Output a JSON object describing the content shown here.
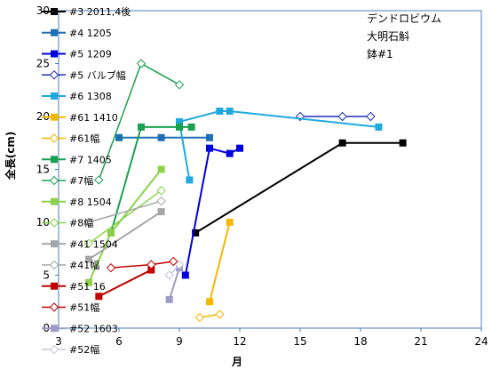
{
  "chart_data": {
    "type": "line",
    "xlabel": "月",
    "ylabel": "全長(cm)",
    "xlim": [
      3,
      24
    ],
    "ylim": [
      0,
      30
    ],
    "xticks": [
      "3",
      "6",
      "9",
      "12",
      "15",
      "18",
      "21",
      "24"
    ],
    "yticks": [
      "0",
      "5",
      "10",
      "15",
      "20",
      "25",
      "30"
    ],
    "annotation": [
      "デンドロビウム",
      "大明石斛",
      "鉢#1"
    ],
    "series": [
      {
        "name": "#3 2011,4後",
        "color": "#000000",
        "marker": "square",
        "x": [
          9.8,
          17.1,
          20.1
        ],
        "y": [
          9.0,
          17.5,
          17.5
        ]
      },
      {
        "name": "#4 1205",
        "color": "#1f6fb5",
        "marker": "square",
        "x": [
          6.0,
          8.1,
          10.5
        ],
        "y": [
          18.0,
          18.0,
          18.0
        ]
      },
      {
        "name": "#5 1209",
        "color": "#0000e0",
        "marker": "square",
        "x": [
          9.3,
          10.5,
          11.5,
          12.0
        ],
        "y": [
          5.0,
          17.0,
          16.5,
          17.0
        ]
      },
      {
        "name": "#5 バルブ幅",
        "color": "#1f2fb5",
        "marker": "diamond-open",
        "x": [
          15.0,
          17.1,
          18.5
        ],
        "y": [
          20.0,
          20.0,
          20.0
        ]
      },
      {
        "name": "#6 1308",
        "color": "#1eaadf",
        "marker": "square",
        "x": [
          9.5,
          9.0,
          11.0,
          11.5,
          18.9
        ],
        "y": [
          14.0,
          19.5,
          20.5,
          20.5,
          19.0
        ]
      },
      {
        "name": "#61 1410",
        "color": "#f5b800",
        "marker": "square",
        "x": [
          10.5,
          11.5
        ],
        "y": [
          2.5,
          10.0
        ]
      },
      {
        "name": "#61幅",
        "color": "#f5b800",
        "marker": "diamond-open",
        "x": [
          10.0,
          11.0
        ],
        "y": [
          1.0,
          1.3
        ]
      },
      {
        "name": "#7 1405",
        "color": "#1aa050",
        "marker": "square",
        "x": [
          5.6,
          7.1,
          9.0,
          9.6
        ],
        "y": [
          9.0,
          19.0,
          19.0,
          19.0
        ]
      },
      {
        "name": "#7幅",
        "color": "#1aa050",
        "marker": "diamond-open",
        "x": [
          5.0,
          7.1,
          9.0
        ],
        "y": [
          14.0,
          25.0,
          23.0
        ]
      },
      {
        "name": "#8 1504",
        "color": "#8cd14a",
        "marker": "square",
        "x": [
          4.5,
          5.6,
          8.1
        ],
        "y": [
          4.3,
          9.0,
          15.0
        ]
      },
      {
        "name": "#8幅",
        "color": "#8cd14a",
        "marker": "diamond-open",
        "x": [
          4.5,
          8.1
        ],
        "y": [
          8.0,
          13.0
        ]
      },
      {
        "name": "#41 1504",
        "color": "#a6a6a6",
        "marker": "square",
        "x": [
          4.5,
          8.1
        ],
        "y": [
          6.5,
          11.0
        ]
      },
      {
        "name": "#41幅",
        "color": "#a6a6a6",
        "marker": "diamond-open",
        "x": [
          4.5,
          8.1
        ],
        "y": [
          10.0,
          12.0
        ]
      },
      {
        "name": "#51 16",
        "color": "#c00000",
        "marker": "square",
        "x": [
          5.0,
          7.6
        ],
        "y": [
          3.0,
          5.5
        ]
      },
      {
        "name": "#51幅",
        "color": "#c00000",
        "marker": "diamond-open",
        "x": [
          5.6,
          7.6,
          8.7
        ],
        "y": [
          5.7,
          6.0,
          6.3
        ]
      },
      {
        "name": "#52 1603",
        "color": "#9e9bc8",
        "marker": "square",
        "x": [
          8.5,
          9.0
        ],
        "y": [
          2.7,
          5.7
        ]
      },
      {
        "name": "#52幅",
        "color": "#c7c5e0",
        "marker": "diamond-open",
        "x": [
          8.5,
          9.0
        ],
        "y": [
          5.0,
          6.0
        ]
      }
    ]
  }
}
